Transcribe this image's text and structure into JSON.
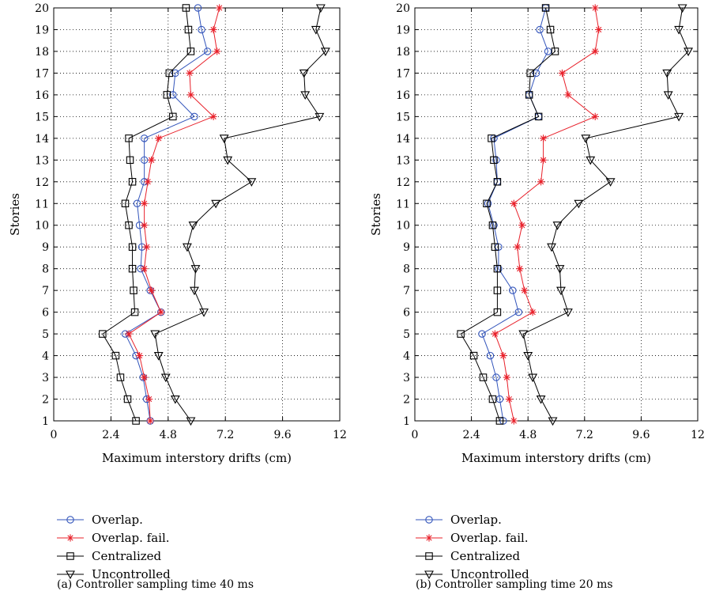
{
  "chart_data": [
    {
      "type": "line",
      "caption": "(a)  Controller sampling time 40 ms",
      "xlabel": "Maximum interstory drifts (cm)",
      "ylabel": "Stories",
      "xlim": [
        0,
        12
      ],
      "ylim": [
        1,
        20
      ],
      "xticks": [
        "0",
        "2.4",
        "4.8",
        "7.2",
        "9.6",
        "12"
      ],
      "yticks": [
        "1",
        "2",
        "3",
        "4",
        "5",
        "6",
        "7",
        "8",
        "9",
        "10",
        "11",
        "12",
        "13",
        "14",
        "15",
        "16",
        "17",
        "18",
        "19",
        "20"
      ],
      "grid": true,
      "legend_position": "bottom",
      "stories": [
        1,
        2,
        3,
        4,
        5,
        6,
        7,
        8,
        9,
        10,
        11,
        12,
        13,
        14,
        15,
        16,
        17,
        18,
        19,
        20
      ],
      "series": [
        {
          "name": "Overlap.",
          "color": "#3355bb",
          "marker": "circle",
          "values": [
            4.05,
            3.9,
            3.75,
            3.45,
            3.0,
            4.5,
            4.05,
            3.65,
            3.7,
            3.6,
            3.5,
            3.8,
            3.8,
            3.8,
            5.9,
            5.0,
            5.1,
            6.45,
            6.2,
            6.05
          ]
        },
        {
          "name": "Overlap. fail.",
          "color": "#e8202a",
          "marker": "star",
          "values": [
            4.05,
            4.0,
            3.8,
            3.6,
            3.15,
            4.5,
            4.1,
            3.8,
            3.9,
            3.8,
            3.8,
            3.95,
            4.1,
            4.4,
            6.7,
            5.75,
            5.7,
            6.85,
            6.7,
            6.95
          ]
        },
        {
          "name": "Centralized",
          "color": "#000000",
          "marker": "square",
          "values": [
            3.45,
            3.1,
            2.8,
            2.6,
            2.05,
            3.4,
            3.35,
            3.3,
            3.3,
            3.15,
            3.0,
            3.3,
            3.2,
            3.15,
            5.0,
            4.75,
            4.85,
            5.75,
            5.65,
            5.55
          ]
        },
        {
          "name": "Uncontrolled",
          "color": "#000000",
          "marker": "triangle",
          "values": [
            5.75,
            5.1,
            4.7,
            4.4,
            4.25,
            6.3,
            5.9,
            5.95,
            5.6,
            5.85,
            6.8,
            8.3,
            7.3,
            7.15,
            11.15,
            10.55,
            10.5,
            11.4,
            11.0,
            11.2
          ]
        }
      ]
    },
    {
      "type": "line",
      "caption": "(b)  Controller sampling time 20 ms",
      "xlabel": "Maximum interstory drifts (cm)",
      "ylabel": "Stories",
      "xlim": [
        0,
        12
      ],
      "ylim": [
        1,
        20
      ],
      "xticks": [
        "0",
        "2.4",
        "4.8",
        "7.2",
        "9.6",
        "12"
      ],
      "yticks": [
        "1",
        "2",
        "3",
        "4",
        "5",
        "6",
        "7",
        "8",
        "9",
        "10",
        "11",
        "12",
        "13",
        "14",
        "15",
        "16",
        "17",
        "18",
        "19",
        "20"
      ],
      "grid": true,
      "legend_position": "bottom",
      "stories": [
        1,
        2,
        3,
        4,
        5,
        6,
        7,
        8,
        9,
        10,
        11,
        12,
        13,
        14,
        15,
        16,
        17,
        18,
        19,
        20
      ],
      "series": [
        {
          "name": "Overlap.",
          "color": "#3355bb",
          "marker": "circle",
          "values": [
            3.75,
            3.6,
            3.45,
            3.2,
            2.85,
            4.4,
            4.15,
            3.55,
            3.55,
            3.35,
            3.1,
            3.5,
            3.45,
            3.35,
            5.25,
            4.85,
            5.15,
            5.65,
            5.3,
            5.55
          ]
        },
        {
          "name": "Overlap. fail.",
          "color": "#e8202a",
          "marker": "star",
          "values": [
            4.2,
            4.0,
            3.9,
            3.75,
            3.4,
            5.0,
            4.65,
            4.45,
            4.35,
            4.55,
            4.2,
            5.35,
            5.45,
            5.45,
            7.65,
            6.5,
            6.25,
            7.65,
            7.8,
            7.65
          ]
        },
        {
          "name": "Centralized",
          "color": "#000000",
          "marker": "square",
          "values": [
            3.6,
            3.3,
            2.9,
            2.5,
            1.95,
            3.5,
            3.5,
            3.5,
            3.4,
            3.3,
            3.05,
            3.5,
            3.35,
            3.25,
            5.25,
            4.85,
            4.9,
            5.95,
            5.75,
            5.55
          ]
        },
        {
          "name": "Uncontrolled",
          "color": "#000000",
          "marker": "triangle",
          "values": [
            5.85,
            5.35,
            5.0,
            4.8,
            4.6,
            6.5,
            6.2,
            6.15,
            5.8,
            6.05,
            6.95,
            8.3,
            7.45,
            7.25,
            11.2,
            10.75,
            10.7,
            11.6,
            11.2,
            11.35
          ]
        }
      ]
    }
  ]
}
